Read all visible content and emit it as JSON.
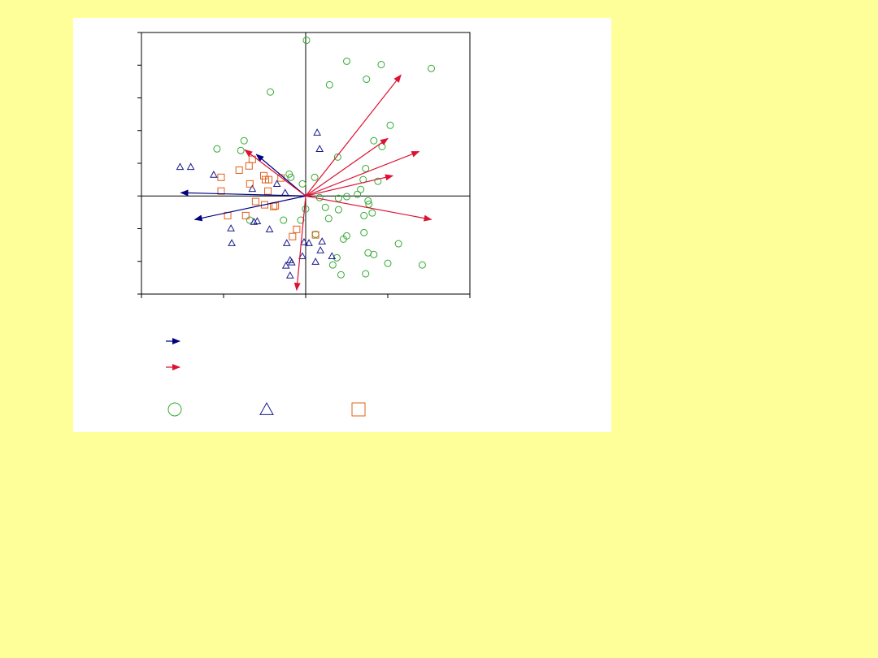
{
  "chart_data": {
    "type": "scatter",
    "xlim": [
      -2,
      2
    ],
    "xticks": [
      -2,
      -1,
      0,
      1,
      2
    ],
    "ylim": [
      -3,
      5
    ],
    "yticks": [
      -3,
      -2,
      -1,
      0,
      1,
      2,
      3,
      4,
      5
    ],
    "series": [
      {
        "color": "#33aa33",
        "marker": "circle",
        "x": [
          0.01,
          0.5,
          0.92,
          1.53,
          0.74,
          0.29,
          -0.43,
          1.03,
          -0.75,
          0.83,
          0.93,
          -1.08,
          -0.79,
          0.39,
          0.73,
          -0.2,
          -0.18,
          0.11,
          0.7,
          0.88,
          -0.04,
          0.67,
          0.63,
          0.5,
          0.17,
          0.4,
          0.76,
          0.77,
          0.24,
          0.4,
          0.0,
          0.81,
          0.71,
          0.28,
          -0.27,
          -0.06,
          -0.68,
          0.12,
          0.71,
          0.5,
          0.46,
          1.13,
          0.76,
          0.83,
          0.38,
          1.0,
          0.33,
          1.42,
          0.43,
          0.73
        ],
        "y": [
          4.76,
          4.12,
          4.02,
          3.9,
          3.57,
          3.4,
          3.18,
          2.16,
          1.69,
          1.69,
          1.51,
          1.44,
          1.39,
          1.19,
          0.84,
          0.67,
          0.57,
          0.57,
          0.5,
          0.45,
          0.37,
          0.2,
          0.05,
          -0.02,
          -0.05,
          -0.07,
          -0.15,
          -0.25,
          -0.35,
          -0.42,
          -0.4,
          -0.52,
          -0.6,
          -0.69,
          -0.74,
          -0.74,
          -0.74,
          -1.17,
          -1.12,
          -1.22,
          -1.32,
          -1.46,
          -1.74,
          -1.79,
          -1.89,
          -2.06,
          -2.11,
          -2.11,
          -2.41,
          -2.38
        ]
      },
      {
        "color": "#1a1a8c",
        "marker": "triangle",
        "x": [
          0.14,
          0.17,
          -1.53,
          -1.4,
          -1.12,
          -0.35,
          -0.65,
          -0.25,
          -0.91,
          -0.59,
          -0.63,
          -0.44,
          -0.9,
          -0.23,
          -0.02,
          0.04,
          0.2,
          0.18,
          -0.04,
          0.32,
          -0.19,
          -0.17,
          -0.24,
          0.12,
          -0.19
        ],
        "y": [
          1.94,
          1.44,
          0.89,
          0.89,
          0.65,
          0.37,
          0.22,
          0.1,
          -0.99,
          -0.77,
          -0.79,
          -1.02,
          -1.44,
          -1.44,
          -1.41,
          -1.44,
          -1.39,
          -1.66,
          -1.84,
          -1.84,
          -1.96,
          -2.03,
          -2.13,
          -2.01,
          -2.43
        ]
      },
      {
        "color": "#e0601a",
        "marker": "square",
        "x": [
          -0.65,
          -0.69,
          -0.81,
          -1.03,
          -0.51,
          -0.3,
          -0.49,
          -0.45,
          -0.68,
          -1.03,
          -0.46,
          -0.61,
          -0.5,
          -0.39,
          -0.37,
          -0.95,
          -0.73,
          -0.11,
          0.12,
          -0.16
        ],
        "y": [
          1.12,
          0.92,
          0.79,
          0.57,
          0.62,
          0.55,
          0.5,
          0.5,
          0.37,
          0.15,
          0.15,
          -0.17,
          -0.27,
          -0.32,
          -0.3,
          -0.6,
          -0.6,
          -1.02,
          -1.19,
          -1.24
        ]
      }
    ],
    "arrows": [
      {
        "color": "#000080",
        "x": [
          -1.52,
          -1.35,
          -0.6
        ],
        "y": [
          0.1,
          -0.72,
          1.27
        ]
      },
      {
        "color": "#dd1133",
        "x": [
          1.16,
          1.0,
          1.38,
          1.06,
          1.53,
          -0.11,
          -0.74
        ],
        "y": [
          3.7,
          1.76,
          1.36,
          0.62,
          -0.72,
          -2.88,
          1.41
        ]
      }
    ]
  }
}
